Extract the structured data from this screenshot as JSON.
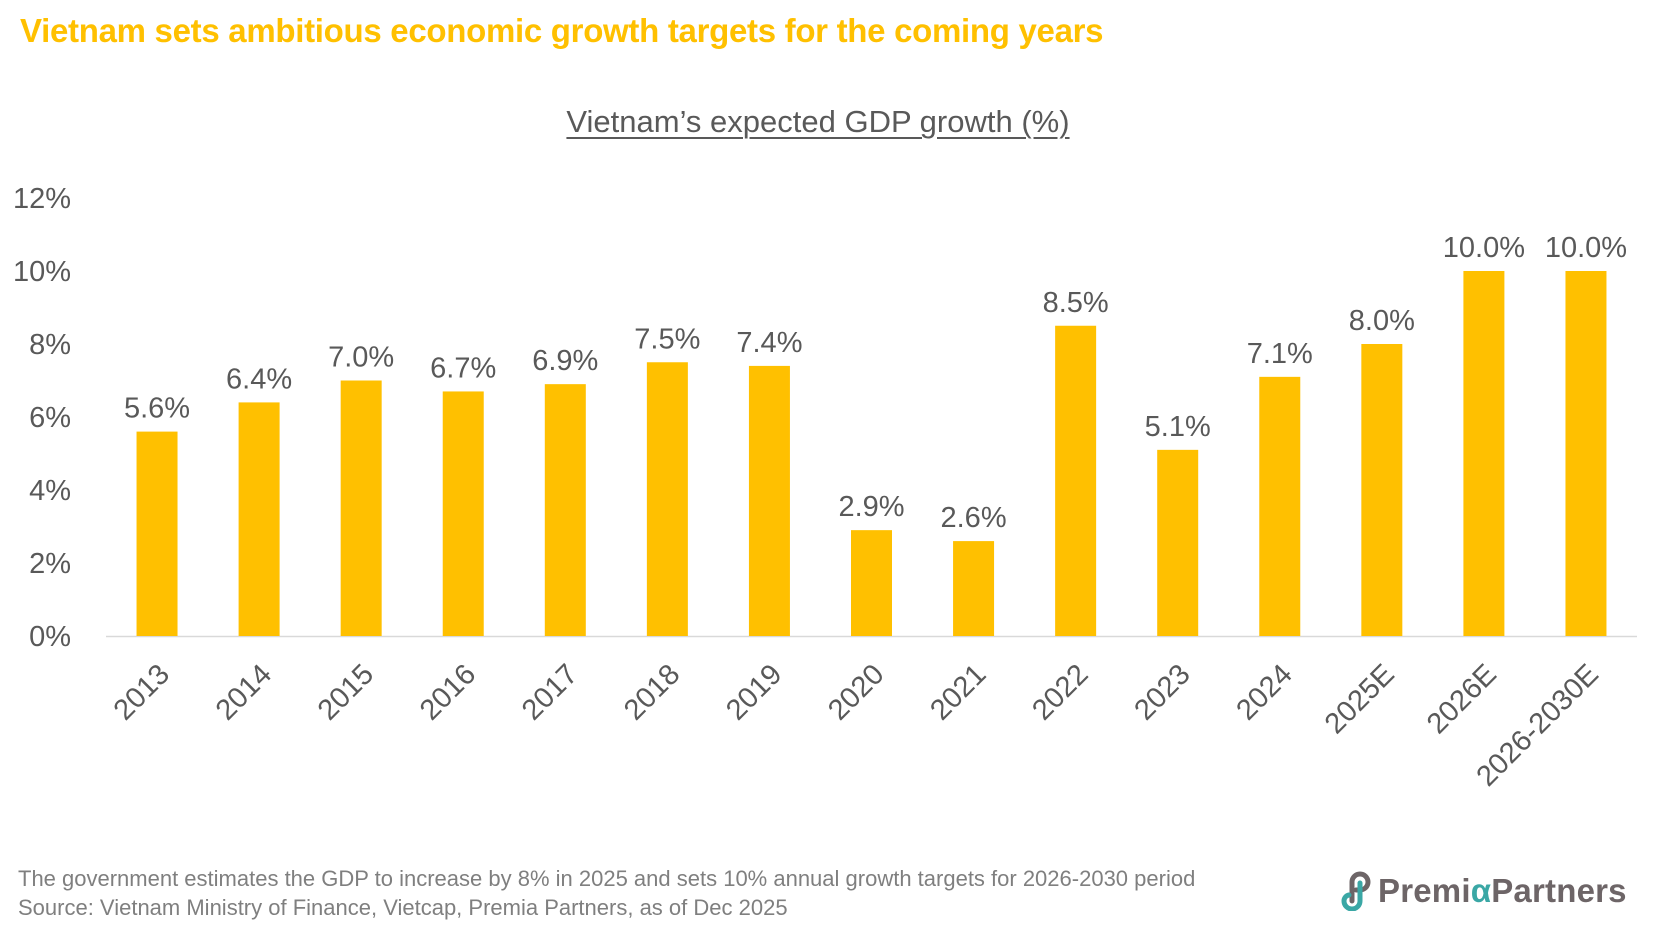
{
  "header": {
    "title": "Vietnam sets ambitious economic growth targets for the coming years"
  },
  "chart_data": {
    "type": "bar",
    "title": "Vietnam’s expected GDP growth (%)",
    "xlabel": "",
    "ylabel": "",
    "categories": [
      "2013",
      "2014",
      "2015",
      "2016",
      "2017",
      "2018",
      "2019",
      "2020",
      "2021",
      "2022",
      "2023",
      "2024",
      "2025E",
      "2026E",
      "2026-2030E"
    ],
    "values": [
      5.6,
      6.4,
      7.0,
      6.7,
      6.9,
      7.5,
      7.4,
      2.9,
      2.6,
      8.5,
      5.1,
      7.1,
      8.0,
      10.0,
      10.0
    ],
    "data_labels": [
      "5.6%",
      "6.4%",
      "7.0%",
      "6.7%",
      "6.9%",
      "7.5%",
      "7.4%",
      "2.9%",
      "2.6%",
      "8.5%",
      "5.1%",
      "7.1%",
      "8.0%",
      "10.0%",
      "10.0%"
    ],
    "ylim": [
      0,
      12
    ],
    "yticks": [
      0,
      2,
      4,
      6,
      8,
      10,
      12
    ],
    "ytick_labels": [
      "0%",
      "2%",
      "4%",
      "6%",
      "8%",
      "10%",
      "12%"
    ],
    "grid": false,
    "legend": "none",
    "bar_color": "#FFC000",
    "label_color": "#595959",
    "x_tick_rotation_deg": -45
  },
  "footer": {
    "note": "The government estimates the GDP to increase by 8% in 2025 and sets 10% annual growth targets for 2026-2030 period",
    "source": "Source: Vietnam Ministry of Finance, Vietcap, Premia Partners, as of Dec 2025"
  },
  "logo": {
    "name_part1": "Premi",
    "name_alpha": "α",
    "name_part2": "Partners",
    "icon": "premia-logo-icon"
  },
  "colors": {
    "accent": "#FFC000",
    "text": "#595959",
    "logo_teal": "#3aa7a5",
    "logo_gray": "#6d6567"
  }
}
